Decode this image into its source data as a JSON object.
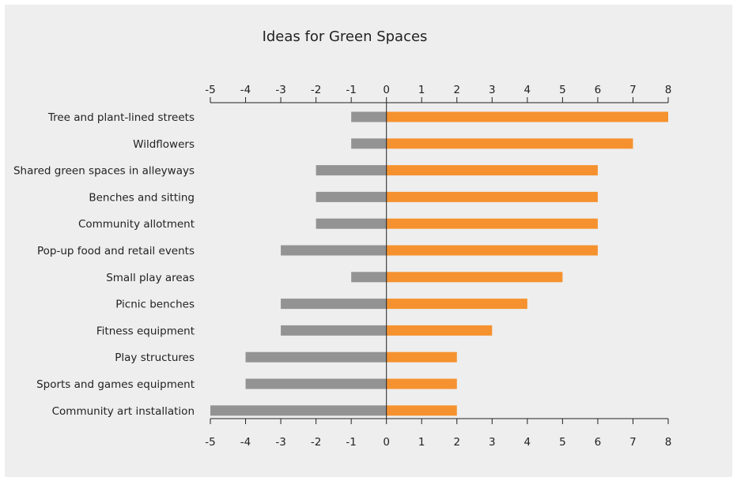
{
  "chart_data": {
    "type": "bar",
    "orientation": "horizontal",
    "title": "Ideas for Green Spaces",
    "xlabel": "",
    "ylabel": "",
    "xlim": [
      -5,
      8
    ],
    "ticks": [
      "-5",
      "-4",
      "-3",
      "-2",
      "-1",
      "0",
      "1",
      "2",
      "3",
      "4",
      "5",
      "6",
      "7",
      "8"
    ],
    "tick_positions": [
      "top",
      "bottom"
    ],
    "grid": false,
    "categories": [
      "Tree and plant-lined streets",
      "Wildflowers",
      "Shared green spaces in alleyways",
      "Benches and sitting",
      "Community allotment",
      "Pop-up food and retail events",
      "Small play areas",
      "Picnic benches",
      "Fitness equipment",
      "Play structures",
      "Sports and games equipment",
      "Community art installation"
    ],
    "series": [
      {
        "color": "#f5922f",
        "values": [
          8,
          7,
          6,
          6,
          6,
          6,
          5,
          4,
          3,
          2,
          2,
          2
        ]
      },
      {
        "color": "#939393",
        "values": [
          -1,
          -1,
          -2,
          -2,
          -2,
          -3,
          -1,
          -3,
          -3,
          -4,
          -4,
          -5
        ]
      }
    ]
  },
  "colors": {
    "background": "#eeeeee",
    "axis": "#222222"
  }
}
